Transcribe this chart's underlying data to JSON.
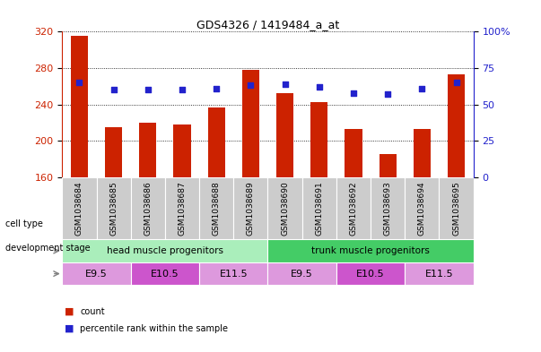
{
  "title": "GDS4326 / 1419484_a_at",
  "samples": [
    "GSM1038684",
    "GSM1038685",
    "GSM1038686",
    "GSM1038687",
    "GSM1038688",
    "GSM1038689",
    "GSM1038690",
    "GSM1038691",
    "GSM1038692",
    "GSM1038693",
    "GSM1038694",
    "GSM1038695"
  ],
  "counts": [
    315,
    215,
    220,
    218,
    237,
    278,
    252,
    243,
    213,
    185,
    213,
    273
  ],
  "percentiles": [
    65,
    60,
    60,
    60,
    61,
    63,
    64,
    62,
    58,
    57,
    61,
    65
  ],
  "ylim_left": [
    160,
    320
  ],
  "ylim_right": [
    0,
    100
  ],
  "yticks_left": [
    160,
    200,
    240,
    280,
    320
  ],
  "yticks_right": [
    0,
    25,
    50,
    75,
    100
  ],
  "bar_color": "#cc2200",
  "dot_color": "#2222cc",
  "background_color": "#ffffff",
  "gray_box_color": "#cccccc",
  "cell_types": [
    {
      "label": "head muscle progenitors",
      "start": 0,
      "end": 6,
      "color": "#aaeebb"
    },
    {
      "label": "trunk muscle progenitors",
      "start": 6,
      "end": 12,
      "color": "#44cc66"
    }
  ],
  "dev_stages": [
    {
      "label": "E9.5",
      "start": 0,
      "end": 2,
      "color": "#dd99dd"
    },
    {
      "label": "E10.5",
      "start": 2,
      "end": 4,
      "color": "#cc55cc"
    },
    {
      "label": "E11.5",
      "start": 4,
      "end": 6,
      "color": "#dd99dd"
    },
    {
      "label": "E9.5",
      "start": 6,
      "end": 8,
      "color": "#dd99dd"
    },
    {
      "label": "E10.5",
      "start": 8,
      "end": 10,
      "color": "#cc55cc"
    },
    {
      "label": "E11.5",
      "start": 10,
      "end": 12,
      "color": "#dd99dd"
    }
  ],
  "legend_items": [
    {
      "label": "count",
      "color": "#cc2200"
    },
    {
      "label": "percentile rank within the sample",
      "color": "#2222cc"
    }
  ]
}
